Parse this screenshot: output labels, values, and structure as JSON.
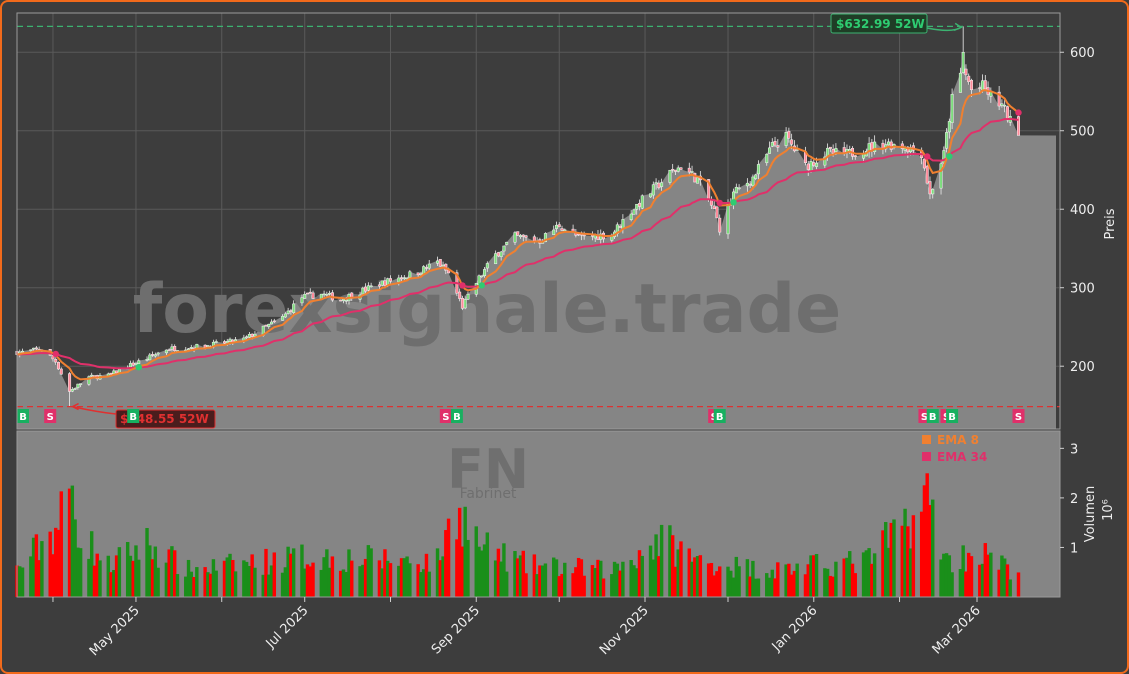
{
  "colors": {
    "background": "#3d3d3d",
    "panel": "#808080",
    "up": "#1a8f1a",
    "down": "#ff0000",
    "ema_fast": "#f08030",
    "ema_slow": "#e0306a",
    "buy": "#18b060",
    "sell": "#e0306a",
    "high_line": "#3cb371",
    "low_line": "#e03030"
  },
  "watermark": "forexsignale.trade",
  "ticker": "FN",
  "ticker_name": "Fabrinet",
  "chart_data": {
    "type": "candlestick",
    "title": "",
    "price_axis": {
      "label": "Preis",
      "ticks": [
        200,
        300,
        400,
        500,
        600
      ],
      "range": [
        120,
        650
      ]
    },
    "volume_axis": {
      "label": "Volumen",
      "unit": "10⁶",
      "ticks": [
        1,
        2,
        3
      ],
      "range": [
        0,
        3.35
      ]
    },
    "x_axis": {
      "labels": [
        "May 2025",
        "Jul 2025",
        "Sep 2025",
        "Nov 2025",
        "Jan 2026",
        "Mar 2026"
      ],
      "label_dates": [
        "2025-05-01",
        "2025-07-01",
        "2025-09-01",
        "2025-11-01",
        "2026-01-01",
        "2026-03-01"
      ],
      "minor_dates": [
        "2025-04-01",
        "2025-06-01",
        "2025-08-01",
        "2025-10-01",
        "2025-12-01",
        "2026-02-01"
      ],
      "start": "2025-03-19",
      "end": "2026-03-31"
    },
    "high_52w": {
      "value": 632.99,
      "label": "$632.99 52W",
      "date": "2026-02-24"
    },
    "low_52w": {
      "value": 148.55,
      "label": "$148.55 52W",
      "date": "2025-04-07"
    },
    "legend": [
      {
        "name": "EMA 8",
        "color": "#f08030"
      },
      {
        "name": "EMA 34",
        "color": "#e0306a"
      }
    ],
    "last_close": 494,
    "price_anchors": [
      [
        "2025-03-21",
        218
      ],
      [
        "2025-03-28",
        222
      ],
      [
        "2025-04-02",
        206
      ],
      [
        "2025-04-07",
        168
      ],
      [
        "2025-04-14",
        186
      ],
      [
        "2025-04-21",
        188
      ],
      [
        "2025-04-28",
        200
      ],
      [
        "2025-05-05",
        210
      ],
      [
        "2025-05-12",
        222
      ],
      [
        "2025-05-26",
        226
      ],
      [
        "2025-06-09",
        234
      ],
      [
        "2025-06-23",
        262
      ],
      [
        "2025-06-30",
        288
      ],
      [
        "2025-07-07",
        292
      ],
      [
        "2025-07-14",
        285
      ],
      [
        "2025-07-28",
        305
      ],
      [
        "2025-08-11",
        320
      ],
      [
        "2025-08-18",
        333
      ],
      [
        "2025-08-22",
        318
      ],
      [
        "2025-08-27",
        276
      ],
      [
        "2025-09-02",
        312
      ],
      [
        "2025-09-08",
        342
      ],
      [
        "2025-09-15",
        365
      ],
      [
        "2025-09-24",
        360
      ],
      [
        "2025-10-01",
        380
      ],
      [
        "2025-10-08",
        364
      ],
      [
        "2025-10-20",
        368
      ],
      [
        "2025-10-27",
        398
      ],
      [
        "2025-11-03",
        422
      ],
      [
        "2025-11-10",
        445
      ],
      [
        "2025-11-14",
        455
      ],
      [
        "2025-11-20",
        438
      ],
      [
        "2025-11-26",
        398
      ],
      [
        "2025-11-28",
        376
      ],
      [
        "2025-12-03",
        420
      ],
      [
        "2025-12-10",
        440
      ],
      [
        "2025-12-17",
        480
      ],
      [
        "2025-12-22",
        492
      ],
      [
        "2025-12-29",
        455
      ],
      [
        "2026-01-06",
        472
      ],
      [
        "2026-01-13",
        470
      ],
      [
        "2026-01-20",
        478
      ],
      [
        "2026-01-27",
        484
      ],
      [
        "2026-02-03",
        480
      ],
      [
        "2026-02-09",
        472
      ],
      [
        "2026-02-12",
        418
      ],
      [
        "2026-02-17",
        470
      ],
      [
        "2026-02-20",
        540
      ],
      [
        "2026-02-24",
        580
      ],
      [
        "2026-02-27",
        552
      ],
      [
        "2026-03-03",
        556
      ],
      [
        "2026-03-06",
        544
      ],
      [
        "2026-03-10",
        532
      ],
      [
        "2026-03-13",
        512
      ]
    ],
    "volume_anchors": [
      [
        "2025-03-19",
        0.6
      ],
      [
        "2025-04-03",
        1.6
      ],
      [
        "2025-04-07",
        2.4
      ],
      [
        "2025-04-11",
        1.4
      ],
      [
        "2025-04-21",
        0.7
      ],
      [
        "2025-05-05",
        1.2
      ],
      [
        "2025-05-20",
        0.6
      ],
      [
        "2025-07-01",
        0.9
      ],
      [
        "2025-08-18",
        0.8
      ],
      [
        "2025-08-25",
        2.0
      ],
      [
        "2025-09-03",
        1.1
      ],
      [
        "2025-09-20",
        0.7
      ],
      [
        "2025-10-20",
        0.6
      ],
      [
        "2025-11-07",
        1.3
      ],
      [
        "2025-11-20",
        0.8
      ],
      [
        "2025-12-15",
        0.6
      ],
      [
        "2026-01-20",
        0.8
      ],
      [
        "2026-02-12",
        2.2
      ],
      [
        "2026-02-18",
        0.8
      ],
      [
        "2026-03-02",
        1.0
      ],
      [
        "2026-03-13",
        0.6
      ]
    ],
    "signals": [
      {
        "type": "B",
        "date": "2025-03-19"
      },
      {
        "type": "S",
        "date": "2025-03-31"
      },
      {
        "type": "B",
        "date": "2025-04-30"
      },
      {
        "type": "S",
        "date": "2025-08-21"
      },
      {
        "type": "B",
        "date": "2025-08-25"
      },
      {
        "type": "S",
        "date": "2025-11-26"
      },
      {
        "type": "B",
        "date": "2025-11-28"
      },
      {
        "type": "S",
        "date": "2026-02-10"
      },
      {
        "type": "B",
        "date": "2026-02-13"
      },
      {
        "type": "S",
        "date": "2026-02-18"
      },
      {
        "type": "B",
        "date": "2026-02-20"
      },
      {
        "type": "S",
        "date": "2026-03-16"
      }
    ]
  }
}
